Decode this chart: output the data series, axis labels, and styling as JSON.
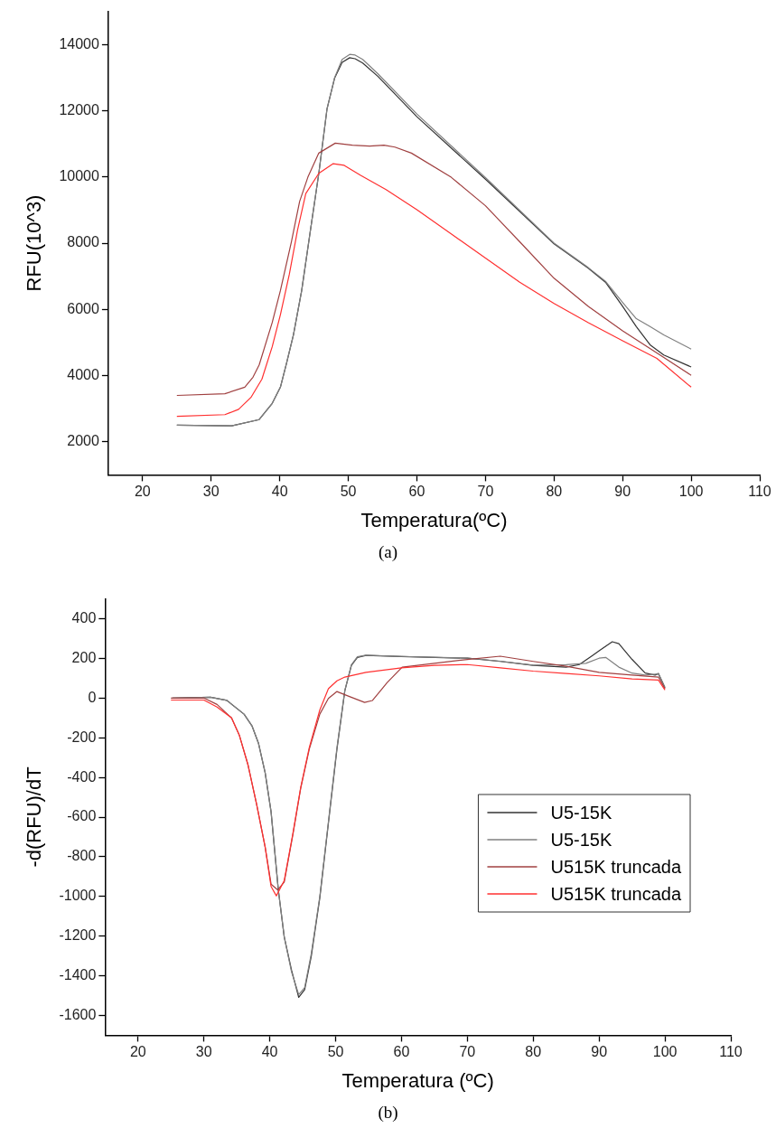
{
  "chart_data": [
    {
      "type": "line",
      "xlabel": "Temperatura(ºC)",
      "ylabel": "RFU(10^3)",
      "annotations": [
        "(a)"
      ],
      "xlim": [
        15,
        110
      ],
      "ylim": [
        1000,
        15000
      ],
      "xticks": [
        20,
        30,
        40,
        50,
        60,
        70,
        80,
        90,
        100,
        110
      ],
      "yticks": [
        2000,
        4000,
        6000,
        8000,
        10000,
        12000,
        14000
      ],
      "grid": false,
      "legend": false,
      "marker": "none",
      "line_style": "solid",
      "series": [
        {
          "color": "#333333",
          "x": [
            25,
            33,
            37,
            38.9,
            40.1,
            41,
            42,
            43.2,
            44.4,
            45.7,
            46.9,
            48,
            49.1,
            50.2,
            51,
            52.1,
            54.3,
            60,
            70,
            80,
            85,
            87.5,
            90,
            92,
            94,
            96,
            100
          ],
          "values": [
            2500,
            2480,
            2670,
            3160,
            3650,
            4380,
            5230,
            6570,
            8280,
            10110,
            12060,
            12980,
            13460,
            13600,
            13570,
            13440,
            13040,
            11820,
            9930,
            7980,
            7240,
            6820,
            6090,
            5480,
            4930,
            4620,
            4260
          ]
        },
        {
          "color": "#808080",
          "x": [
            25,
            33,
            37,
            38.9,
            40.1,
            41,
            42,
            43.2,
            44.4,
            45.7,
            46.9,
            48,
            49.1,
            50.2,
            51,
            52.1,
            54.3,
            60,
            70,
            80,
            85,
            87.5,
            90,
            92,
            94,
            96,
            100
          ],
          "values": [
            2500,
            2480,
            2670,
            3160,
            3650,
            4380,
            5230,
            6570,
            8280,
            10110,
            12060,
            13000,
            13550,
            13700,
            13680,
            13550,
            13120,
            11900,
            9980,
            8000,
            7260,
            6850,
            6210,
            5720,
            5480,
            5230,
            4800
          ]
        },
        {
          "color": "#a04040",
          "x": [
            25,
            32,
            34.9,
            36.1,
            37,
            38.9,
            40.1,
            41.7,
            42.9,
            44.1,
            45.7,
            48.1,
            50.6,
            53.1,
            55.2,
            56.8,
            59.2,
            65,
            70,
            75,
            80,
            85,
            90,
            95,
            100
          ],
          "values": [
            3400,
            3450,
            3650,
            3950,
            4320,
            5600,
            6570,
            8040,
            9260,
            9990,
            10720,
            11020,
            10960,
            10930,
            10960,
            10900,
            10720,
            9990,
            9130,
            8040,
            6940,
            6090,
            5350,
            4680,
            4010
          ]
        },
        {
          "color": "#ff3030",
          "x": [
            25,
            32,
            34,
            35.8,
            37.4,
            38.9,
            40.1,
            41.4,
            42.6,
            43.8,
            45.7,
            47.8,
            49.4,
            51.8,
            55.5,
            60,
            65,
            70,
            75,
            80,
            85,
            90,
            95,
            100
          ],
          "values": [
            2770,
            2820,
            2980,
            3340,
            3890,
            4870,
            5840,
            7060,
            8400,
            9500,
            10110,
            10400,
            10350,
            10050,
            9620,
            9010,
            8280,
            7550,
            6820,
            6180,
            5600,
            5050,
            4520,
            3650
          ]
        }
      ]
    },
    {
      "type": "line",
      "xlabel": "Temperatura (ºC)",
      "ylabel": "-d(RFU)/dT",
      "annotations": [
        "(b)"
      ],
      "xlim": [
        15,
        110
      ],
      "ylim": [
        -1700,
        500
      ],
      "xticks": [
        20,
        30,
        40,
        50,
        60,
        70,
        80,
        90,
        100,
        110
      ],
      "yticks": [
        -1600,
        -1400,
        -1200,
        -1000,
        -800,
        -600,
        -400,
        -200,
        0,
        200,
        400
      ],
      "grid": false,
      "legend": "right",
      "marker": "none",
      "line_style": "solid",
      "series": [
        {
          "name": "U5-15K",
          "color": "#333333",
          "x": [
            25.2,
            31,
            33.5,
            36.1,
            37.3,
            38.3,
            39.3,
            40.2,
            41.3,
            42.2,
            43.3,
            44.4,
            45.3,
            46.3,
            47.6,
            48.9,
            50.2,
            51.4,
            52.4,
            53.3,
            54.6,
            60,
            70,
            75,
            80,
            85,
            87,
            89,
            90,
            92,
            93,
            95,
            97,
            98.5,
            99,
            100
          ],
          "values": [
            0,
            4,
            -12,
            -81,
            -140,
            -229,
            -376,
            -573,
            -967,
            -1204,
            -1371,
            -1509,
            -1470,
            -1302,
            -1007,
            -632,
            -258,
            37,
            165,
            205,
            215,
            209,
            201,
            185,
            165,
            156,
            169,
            215,
            238,
            284,
            274,
            195,
            126,
            116,
            124,
            53
          ]
        },
        {
          "name": "U5-15K",
          "color": "#808080",
          "x": [
            25.2,
            31,
            33.5,
            36.1,
            37.3,
            38.3,
            39.3,
            40.2,
            41.3,
            42.2,
            43.3,
            44.4,
            45.3,
            46.3,
            47.6,
            48.9,
            50.2,
            51.4,
            52.4,
            53.3,
            54.6,
            60,
            70,
            75,
            80,
            85,
            88,
            90,
            91,
            93,
            95,
            97,
            99,
            100
          ],
          "values": [
            0,
            4,
            -12,
            -81,
            -140,
            -229,
            -376,
            -573,
            -967,
            -1204,
            -1380,
            -1495,
            -1460,
            -1290,
            -1000,
            -625,
            -250,
            40,
            168,
            208,
            216,
            210,
            202,
            186,
            166,
            168,
            175,
            201,
            205,
            156,
            126,
            116,
            122,
            53
          ]
        },
        {
          "name": "U515K truncada",
          "color": "#a04040",
          "x": [
            25,
            30,
            32,
            34.2,
            35.4,
            36.7,
            38,
            39.3,
            40.2,
            41.2,
            42.2,
            43.5,
            44.7,
            46,
            47.6,
            48.9,
            50.2,
            52.1,
            54.4,
            55.6,
            57.8,
            60.1,
            65,
            70,
            75,
            80,
            85,
            90,
            95,
            99,
            100
          ],
          "values": [
            0,
            0,
            -32,
            -100,
            -189,
            -337,
            -534,
            -751,
            -938,
            -967,
            -928,
            -691,
            -455,
            -258,
            -81,
            -2,
            33,
            8,
            -22,
            -12,
            77,
            156,
            175,
            195,
            211,
            185,
            160,
            130,
            116,
            106,
            47
          ]
        },
        {
          "name": "U515K truncada",
          "color": "#ff3030",
          "x": [
            25,
            30,
            32,
            34.2,
            35.4,
            36.7,
            38,
            39.3,
            40.2,
            41,
            42.2,
            43.5,
            44.7,
            46,
            47.6,
            48.9,
            50.2,
            51.4,
            54.6,
            60,
            65,
            70,
            75,
            80,
            85,
            90,
            95,
            99,
            100
          ],
          "values": [
            -10,
            -10,
            -45,
            -100,
            -189,
            -337,
            -534,
            -751,
            -950,
            -997,
            -920,
            -685,
            -450,
            -250,
            -60,
            47,
            87,
            106,
            130,
            152,
            165,
            169,
            152,
            136,
            124,
            112,
            97,
            91,
            41
          ]
        }
      ]
    }
  ]
}
